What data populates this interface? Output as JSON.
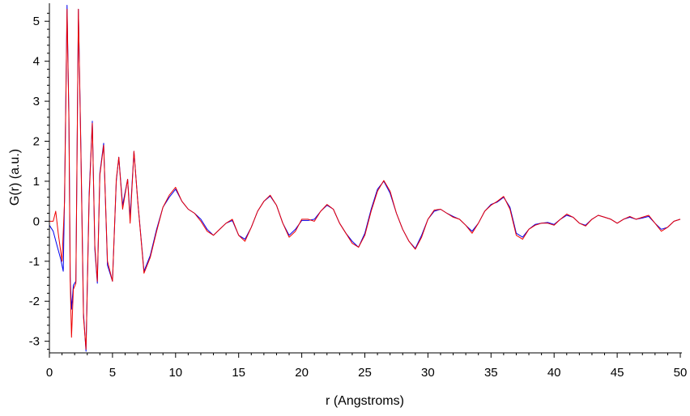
{
  "chart_data": {
    "type": "line",
    "title": "",
    "xlabel": "r (Angstroms)",
    "ylabel": "G(r) (a.u.)",
    "xlim": [
      0,
      50
    ],
    "ylim": [
      -3.25,
      5.45
    ],
    "grid": false,
    "legend": "none",
    "x_ticks": [
      0,
      5,
      10,
      15,
      20,
      25,
      30,
      35,
      40,
      45,
      50
    ],
    "y_ticks": [
      -3,
      -2,
      -1,
      0,
      1,
      2,
      3,
      4,
      5
    ],
    "series": [
      {
        "color": "#0000ee",
        "points": [
          [
            0.0,
            -0.1
          ],
          [
            0.3,
            -0.25
          ],
          [
            0.6,
            -0.6
          ],
          [
            0.9,
            -0.95
          ],
          [
            1.1,
            -1.25
          ],
          [
            1.2,
            0.6
          ],
          [
            1.4,
            5.4
          ],
          [
            1.55,
            2.6
          ],
          [
            1.65,
            -1.4
          ],
          [
            1.75,
            -2.2
          ],
          [
            1.9,
            -1.6
          ],
          [
            2.1,
            -1.5
          ],
          [
            2.3,
            5.3
          ],
          [
            2.5,
            1.7
          ],
          [
            2.7,
            -2.3
          ],
          [
            2.9,
            -3.25
          ],
          [
            3.15,
            0.7
          ],
          [
            3.4,
            2.5
          ],
          [
            3.6,
            -0.7
          ],
          [
            3.8,
            -1.55
          ],
          [
            4.0,
            1.2
          ],
          [
            4.3,
            1.95
          ],
          [
            4.6,
            -1.1
          ],
          [
            5.0,
            -1.5
          ],
          [
            5.3,
            1.0
          ],
          [
            5.5,
            1.6
          ],
          [
            5.8,
            0.4
          ],
          [
            6.2,
            1.05
          ],
          [
            6.4,
            0.1
          ],
          [
            6.7,
            1.75
          ],
          [
            7.0,
            0.5
          ],
          [
            7.5,
            -1.25
          ],
          [
            8.0,
            -0.85
          ],
          [
            8.5,
            -0.2
          ],
          [
            9.0,
            0.35
          ],
          [
            9.5,
            0.6
          ],
          [
            10.0,
            0.8
          ],
          [
            10.5,
            0.5
          ],
          [
            11.0,
            0.3
          ],
          [
            11.5,
            0.2
          ],
          [
            12.0,
            0.05
          ],
          [
            12.5,
            -0.2
          ],
          [
            13.0,
            -0.35
          ],
          [
            13.5,
            -0.2
          ],
          [
            14.0,
            -0.05
          ],
          [
            14.5,
            0.02
          ],
          [
            15.0,
            -0.35
          ],
          [
            15.5,
            -0.45
          ],
          [
            16.0,
            -0.15
          ],
          [
            16.5,
            0.25
          ],
          [
            17.0,
            0.5
          ],
          [
            17.5,
            0.63
          ],
          [
            18.0,
            0.4
          ],
          [
            18.5,
            -0.05
          ],
          [
            19.0,
            -0.35
          ],
          [
            19.5,
            -0.2
          ],
          [
            20.0,
            0.02
          ],
          [
            20.5,
            0.02
          ],
          [
            21.0,
            0.05
          ],
          [
            21.5,
            0.25
          ],
          [
            22.0,
            0.4
          ],
          [
            22.5,
            0.3
          ],
          [
            23.0,
            -0.05
          ],
          [
            23.5,
            -0.3
          ],
          [
            24.0,
            -0.5
          ],
          [
            24.5,
            -0.65
          ],
          [
            25.0,
            -0.3
          ],
          [
            25.5,
            0.3
          ],
          [
            26.0,
            0.8
          ],
          [
            26.5,
            1.0
          ],
          [
            27.0,
            0.7
          ],
          [
            27.5,
            0.2
          ],
          [
            28.0,
            -0.2
          ],
          [
            28.5,
            -0.5
          ],
          [
            29.0,
            -0.68
          ],
          [
            29.5,
            -0.35
          ],
          [
            30.0,
            0.05
          ],
          [
            30.5,
            0.25
          ],
          [
            31.0,
            0.3
          ],
          [
            31.5,
            0.2
          ],
          [
            32.0,
            0.12
          ],
          [
            32.5,
            0.05
          ],
          [
            33.0,
            -0.1
          ],
          [
            33.5,
            -0.25
          ],
          [
            34.0,
            -0.05
          ],
          [
            34.5,
            0.25
          ],
          [
            35.0,
            0.42
          ],
          [
            35.5,
            0.48
          ],
          [
            36.0,
            0.6
          ],
          [
            36.5,
            0.35
          ],
          [
            37.0,
            -0.3
          ],
          [
            37.5,
            -0.4
          ],
          [
            38.0,
            -0.2
          ],
          [
            38.5,
            -0.08
          ],
          [
            39.0,
            -0.05
          ],
          [
            39.5,
            -0.03
          ],
          [
            40.0,
            -0.08
          ],
          [
            40.5,
            0.05
          ],
          [
            41.0,
            0.15
          ],
          [
            41.5,
            0.1
          ],
          [
            42.0,
            -0.05
          ],
          [
            42.5,
            -0.1
          ],
          [
            43.0,
            0.05
          ],
          [
            43.5,
            0.15
          ],
          [
            44.0,
            0.1
          ],
          [
            44.5,
            0.05
          ],
          [
            45.0,
            -0.05
          ],
          [
            45.5,
            0.05
          ],
          [
            46.0,
            0.1
          ],
          [
            46.5,
            0.05
          ],
          [
            47.0,
            0.08
          ],
          [
            47.5,
            0.12
          ],
          [
            48.0,
            -0.05
          ],
          [
            48.5,
            -0.2
          ],
          [
            49.0,
            -0.15
          ],
          [
            49.5,
            0.0
          ],
          [
            50.0,
            0.05
          ]
        ]
      },
      {
        "color": "#ee0000",
        "points": [
          [
            0.0,
            0.0
          ],
          [
            0.3,
            0.0
          ],
          [
            0.5,
            0.25
          ],
          [
            0.7,
            -0.3
          ],
          [
            1.0,
            -1.0
          ],
          [
            1.2,
            0.5
          ],
          [
            1.4,
            5.3
          ],
          [
            1.55,
            2.5
          ],
          [
            1.65,
            -1.5
          ],
          [
            1.75,
            -2.9
          ],
          [
            1.9,
            -1.7
          ],
          [
            2.1,
            -1.55
          ],
          [
            2.3,
            5.3
          ],
          [
            2.5,
            1.6
          ],
          [
            2.7,
            -2.4
          ],
          [
            2.9,
            -3.2
          ],
          [
            3.15,
            0.6
          ],
          [
            3.4,
            2.45
          ],
          [
            3.6,
            -0.6
          ],
          [
            3.8,
            -1.5
          ],
          [
            4.0,
            1.15
          ],
          [
            4.3,
            1.9
          ],
          [
            4.6,
            -1.0
          ],
          [
            5.0,
            -1.5
          ],
          [
            5.3,
            1.05
          ],
          [
            5.5,
            1.6
          ],
          [
            5.8,
            0.3
          ],
          [
            6.2,
            1.05
          ],
          [
            6.4,
            -0.05
          ],
          [
            6.7,
            1.75
          ],
          [
            7.0,
            0.5
          ],
          [
            7.5,
            -1.3
          ],
          [
            8.0,
            -0.9
          ],
          [
            8.5,
            -0.25
          ],
          [
            9.0,
            0.35
          ],
          [
            9.5,
            0.65
          ],
          [
            10.0,
            0.85
          ],
          [
            10.5,
            0.5
          ],
          [
            11.0,
            0.3
          ],
          [
            11.5,
            0.2
          ],
          [
            12.0,
            0.0
          ],
          [
            12.5,
            -0.25
          ],
          [
            13.0,
            -0.35
          ],
          [
            13.5,
            -0.2
          ],
          [
            14.0,
            -0.05
          ],
          [
            14.5,
            0.05
          ],
          [
            15.0,
            -0.35
          ],
          [
            15.5,
            -0.5
          ],
          [
            16.0,
            -0.15
          ],
          [
            16.5,
            0.25
          ],
          [
            17.0,
            0.5
          ],
          [
            17.5,
            0.65
          ],
          [
            18.0,
            0.4
          ],
          [
            18.5,
            -0.05
          ],
          [
            19.0,
            -0.4
          ],
          [
            19.5,
            -0.25
          ],
          [
            20.0,
            0.05
          ],
          [
            20.5,
            0.05
          ],
          [
            21.0,
            0.0
          ],
          [
            21.5,
            0.25
          ],
          [
            22.0,
            0.42
          ],
          [
            22.5,
            0.3
          ],
          [
            23.0,
            -0.05
          ],
          [
            23.5,
            -0.3
          ],
          [
            24.0,
            -0.55
          ],
          [
            24.5,
            -0.65
          ],
          [
            25.0,
            -0.35
          ],
          [
            25.5,
            0.25
          ],
          [
            26.0,
            0.75
          ],
          [
            26.5,
            1.02
          ],
          [
            27.0,
            0.75
          ],
          [
            27.5,
            0.2
          ],
          [
            28.0,
            -0.2
          ],
          [
            28.5,
            -0.5
          ],
          [
            29.0,
            -0.7
          ],
          [
            29.5,
            -0.4
          ],
          [
            30.0,
            0.05
          ],
          [
            30.5,
            0.28
          ],
          [
            31.0,
            0.3
          ],
          [
            31.5,
            0.2
          ],
          [
            32.0,
            0.1
          ],
          [
            32.5,
            0.05
          ],
          [
            33.0,
            -0.1
          ],
          [
            33.5,
            -0.3
          ],
          [
            34.0,
            -0.05
          ],
          [
            34.5,
            0.25
          ],
          [
            35.0,
            0.4
          ],
          [
            35.5,
            0.5
          ],
          [
            36.0,
            0.62
          ],
          [
            36.5,
            0.3
          ],
          [
            37.0,
            -0.35
          ],
          [
            37.5,
            -0.45
          ],
          [
            38.0,
            -0.2
          ],
          [
            38.5,
            -0.1
          ],
          [
            39.0,
            -0.05
          ],
          [
            39.5,
            -0.05
          ],
          [
            40.0,
            -0.1
          ],
          [
            40.5,
            0.05
          ],
          [
            41.0,
            0.18
          ],
          [
            41.5,
            0.1
          ],
          [
            42.0,
            -0.05
          ],
          [
            42.5,
            -0.12
          ],
          [
            43.0,
            0.05
          ],
          [
            43.5,
            0.15
          ],
          [
            44.0,
            0.1
          ],
          [
            44.5,
            0.05
          ],
          [
            45.0,
            -0.05
          ],
          [
            45.5,
            0.05
          ],
          [
            46.0,
            0.12
          ],
          [
            46.5,
            0.05
          ],
          [
            47.0,
            0.1
          ],
          [
            47.5,
            0.15
          ],
          [
            48.0,
            -0.05
          ],
          [
            48.5,
            -0.25
          ],
          [
            49.0,
            -0.15
          ],
          [
            49.5,
            0.0
          ],
          [
            50.0,
            0.05
          ]
        ]
      }
    ]
  }
}
